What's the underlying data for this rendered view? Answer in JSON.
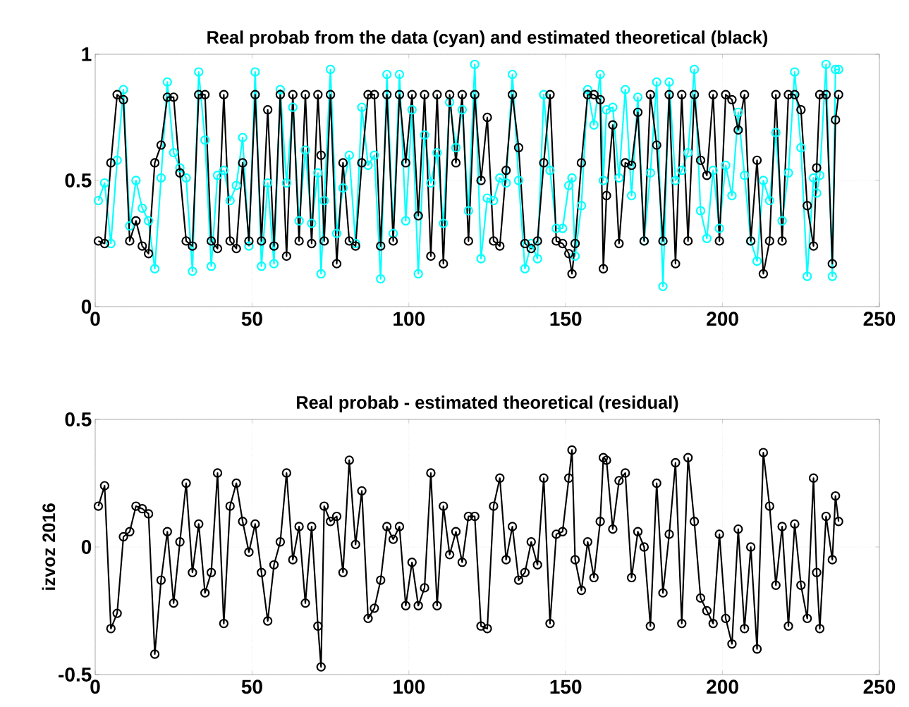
{
  "chart_data": [
    {
      "type": "line",
      "title": "Real probab from the data (cyan) and estimated theoretical (black)",
      "x": [
        1,
        3,
        5,
        7,
        9,
        11,
        13,
        15,
        17,
        19,
        21,
        23,
        25,
        27,
        29,
        31,
        33,
        35,
        37,
        39,
        41,
        43,
        45,
        47,
        49,
        51,
        53,
        55,
        57,
        59,
        61,
        63,
        65,
        67,
        69,
        71,
        72,
        73,
        75,
        77,
        79,
        81,
        83,
        85,
        87,
        89,
        91,
        93,
        95,
        97,
        99,
        101,
        103,
        105,
        107,
        109,
        111,
        113,
        115,
        117,
        119,
        121,
        123,
        125,
        127,
        129,
        131,
        133,
        135,
        137,
        139,
        141,
        143,
        145,
        147,
        149,
        151,
        152,
        153,
        155,
        157,
        159,
        161,
        162,
        163,
        165,
        167,
        169,
        171,
        173,
        175,
        177,
        179,
        181,
        183,
        185,
        187,
        189,
        191,
        193,
        195,
        197,
        199,
        201,
        203,
        205,
        207,
        209,
        211,
        213,
        215,
        217,
        219,
        221,
        223,
        225,
        227,
        229,
        230,
        231,
        233,
        235,
        236,
        237
      ],
      "series": [
        {
          "color": "#00ffff",
          "values": [
            0.42,
            0.49,
            0.25,
            0.58,
            0.86,
            0.32,
            0.5,
            0.39,
            0.34,
            0.15,
            0.51,
            0.89,
            0.61,
            0.55,
            0.51,
            0.14,
            0.93,
            0.66,
            0.16,
            0.52,
            0.54,
            0.42,
            0.48,
            0.67,
            0.24,
            0.93,
            0.16,
            0.49,
            0.17,
            0.86,
            0.49,
            0.79,
            0.34,
            0.62,
            0.33,
            0.53,
            0.13,
            0.42,
            0.94,
            0.29,
            0.47,
            0.6,
            0.25,
            0.79,
            0.56,
            0.6,
            0.11,
            0.92,
            0.29,
            0.92,
            0.34,
            0.78,
            0.13,
            0.68,
            0.49,
            0.61,
            0.33,
            0.81,
            0.63,
            0.78,
            0.38,
            0.96,
            0.19,
            0.43,
            0.42,
            0.51,
            0.49,
            0.92,
            0.5,
            0.15,
            0.25,
            0.19,
            0.84,
            0.54,
            0.31,
            0.31,
            0.48,
            0.51,
            0.2,
            0.4,
            0.86,
            0.72,
            0.92,
            0.5,
            0.78,
            0.79,
            0.51,
            0.86,
            0.44,
            0.83,
            0.26,
            0.53,
            0.89,
            0.08,
            0.89,
            0.5,
            0.54,
            0.61,
            0.94,
            0.38,
            0.27,
            0.54,
            0.31,
            0.56,
            0.44,
            0.77,
            0.52,
            0.26,
            0.18,
            0.5,
            0.42,
            0.69,
            0.34,
            0.53,
            0.93,
            0.63,
            0.12,
            0.51,
            0.45,
            0.52,
            0.96,
            0.12,
            0.94,
            0.94
          ]
        },
        {
          "color": "#000000",
          "values": [
            0.26,
            0.25,
            0.57,
            0.84,
            0.82,
            0.26,
            0.34,
            0.24,
            0.21,
            0.57,
            0.64,
            0.83,
            0.83,
            0.53,
            0.26,
            0.24,
            0.84,
            0.84,
            0.26,
            0.23,
            0.84,
            0.26,
            0.23,
            0.57,
            0.26,
            0.84,
            0.26,
            0.78,
            0.24,
            0.84,
            0.2,
            0.84,
            0.26,
            0.84,
            0.25,
            0.84,
            0.6,
            0.26,
            0.84,
            0.17,
            0.57,
            0.26,
            0.24,
            0.57,
            0.84,
            0.84,
            0.24,
            0.84,
            0.26,
            0.84,
            0.57,
            0.84,
            0.36,
            0.84,
            0.2,
            0.84,
            0.17,
            0.84,
            0.57,
            0.84,
            0.26,
            0.84,
            0.5,
            0.75,
            0.26,
            0.24,
            0.54,
            0.84,
            0.63,
            0.25,
            0.23,
            0.26,
            0.57,
            0.84,
            0.26,
            0.25,
            0.21,
            0.13,
            0.25,
            0.57,
            0.84,
            0.84,
            0.82,
            0.15,
            0.44,
            0.72,
            0.25,
            0.57,
            0.56,
            0.77,
            0.26,
            0.84,
            0.64,
            0.26,
            0.84,
            0.17,
            0.84,
            0.26,
            0.84,
            0.58,
            0.52,
            0.84,
            0.26,
            0.84,
            0.82,
            0.7,
            0.84,
            0.26,
            0.58,
            0.13,
            0.26,
            0.84,
            0.26,
            0.84,
            0.84,
            0.78,
            0.4,
            0.24,
            0.55,
            0.84,
            0.84,
            0.17,
            0.74,
            0.84
          ]
        }
      ],
      "xlim": [
        0,
        250
      ],
      "xticks": [
        0,
        50,
        100,
        150,
        200,
        250
      ],
      "ylim": [
        0,
        1
      ],
      "yticks": [
        0,
        0.5,
        1
      ],
      "grid": true,
      "marker": "circle",
      "line_style": "solid"
    },
    {
      "type": "line",
      "title": "Real probab - estimated theoretical (residual)",
      "ylabel": "izvoz 2016",
      "x": [
        1,
        3,
        5,
        7,
        9,
        11,
        13,
        15,
        17,
        19,
        21,
        23,
        25,
        27,
        29,
        31,
        33,
        35,
        37,
        39,
        41,
        43,
        45,
        47,
        49,
        51,
        53,
        55,
        57,
        59,
        61,
        63,
        65,
        67,
        69,
        71,
        72,
        73,
        75,
        77,
        79,
        81,
        83,
        85,
        87,
        89,
        91,
        93,
        95,
        97,
        99,
        101,
        103,
        105,
        107,
        109,
        111,
        113,
        115,
        117,
        119,
        121,
        123,
        125,
        127,
        129,
        131,
        133,
        135,
        137,
        139,
        141,
        143,
        145,
        147,
        149,
        151,
        152,
        153,
        155,
        157,
        159,
        161,
        162,
        163,
        165,
        167,
        169,
        171,
        173,
        175,
        177,
        179,
        181,
        183,
        185,
        187,
        189,
        191,
        193,
        195,
        197,
        199,
        201,
        203,
        205,
        207,
        209,
        211,
        213,
        215,
        217,
        219,
        221,
        223,
        225,
        227,
        229,
        230,
        231,
        233,
        235,
        236,
        237
      ],
      "series": [
        {
          "color": "#000000",
          "values": [
            0.16,
            0.24,
            -0.32,
            -0.26,
            0.04,
            0.06,
            0.16,
            0.15,
            0.13,
            -0.42,
            -0.13,
            0.06,
            -0.22,
            0.02,
            0.25,
            -0.1,
            0.09,
            -0.18,
            -0.1,
            0.29,
            -0.3,
            0.16,
            0.25,
            0.1,
            -0.02,
            0.09,
            -0.1,
            -0.29,
            -0.07,
            0.02,
            0.29,
            -0.05,
            0.08,
            -0.22,
            0.08,
            -0.31,
            -0.47,
            0.16,
            0.1,
            0.12,
            -0.1,
            0.34,
            0.01,
            0.22,
            -0.28,
            -0.24,
            -0.13,
            0.08,
            0.03,
            0.08,
            -0.23,
            -0.06,
            -0.23,
            -0.16,
            0.29,
            -0.23,
            0.16,
            -0.03,
            0.06,
            -0.06,
            0.12,
            0.12,
            -0.31,
            -0.32,
            0.16,
            0.27,
            -0.05,
            0.08,
            -0.13,
            -0.1,
            0.02,
            -0.07,
            0.27,
            -0.3,
            0.05,
            0.06,
            0.27,
            0.38,
            -0.05,
            -0.17,
            0.02,
            -0.12,
            0.1,
            0.35,
            0.34,
            0.07,
            0.26,
            0.29,
            -0.12,
            0.06,
            0.0,
            -0.31,
            0.25,
            -0.18,
            0.05,
            0.33,
            -0.3,
            0.35,
            0.1,
            -0.2,
            -0.25,
            -0.3,
            0.05,
            -0.28,
            -0.38,
            0.07,
            -0.32,
            0.0,
            -0.4,
            0.37,
            0.16,
            -0.15,
            0.08,
            -0.31,
            0.09,
            -0.15,
            -0.28,
            0.27,
            -0.1,
            -0.32,
            0.12,
            -0.05,
            0.2,
            0.1
          ]
        }
      ],
      "xlim": [
        0,
        250
      ],
      "xticks": [
        0,
        50,
        100,
        150,
        200,
        250
      ],
      "ylim": [
        -0.5,
        0.5
      ],
      "yticks": [
        -0.5,
        0,
        0.5
      ],
      "grid": true,
      "marker": "circle",
      "line_style": "solid"
    }
  ]
}
